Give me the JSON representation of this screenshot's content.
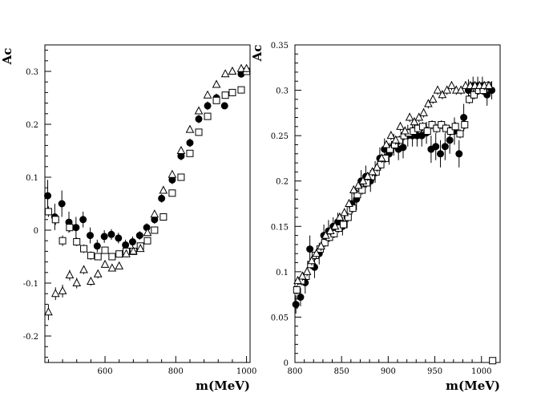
{
  "chart_data": [
    {
      "type": "scatter",
      "ylabel": "Ac",
      "xlabel": "m(MeV)",
      "xlim": [
        430,
        1010
      ],
      "ylim": [
        -0.25,
        0.35
      ],
      "xticks": [
        600,
        800,
        1000
      ],
      "yticks": [
        -0.2,
        -0.1,
        0,
        0.1,
        0.2,
        0.3
      ],
      "ytick_labels": [
        "-0.2",
        "-0.1",
        "0",
        "0.1",
        "0.2",
        "0.3"
      ],
      "grid": false,
      "series": [
        {
          "marker": "filled-circle",
          "x": [
            438,
            458,
            478,
            498,
            518,
            538,
            558,
            578,
            598,
            618,
            638,
            658,
            678,
            698,
            718,
            740,
            760,
            790,
            815,
            840,
            865,
            890,
            915,
            938,
            960,
            985,
            1000
          ],
          "y": [
            0.065,
            0.025,
            0.05,
            0.015,
            0.005,
            0.02,
            -0.01,
            -0.03,
            -0.012,
            -0.008,
            -0.015,
            -0.028,
            -0.022,
            -0.01,
            0.005,
            0.02,
            0.06,
            0.095,
            0.14,
            0.165,
            0.21,
            0.235,
            0.25,
            0.235,
            0.26,
            0.295,
            0.3
          ],
          "err": [
            0.03,
            0.025,
            0.025,
            0.02,
            0.02,
            0.015,
            0.015,
            0.012,
            0.012,
            0.01,
            0.01,
            0.01,
            0.01,
            0.008,
            0.008,
            0.008,
            0.008,
            0.008,
            0.008,
            0.008,
            0.008,
            0.008,
            0.008,
            0.006,
            0.006,
            0.006,
            0.006
          ]
        },
        {
          "marker": "open-square",
          "x": [
            440,
            460,
            480,
            500,
            520,
            540,
            560,
            580,
            600,
            620,
            640,
            660,
            680,
            700,
            720,
            740,
            765,
            790,
            815,
            840,
            865,
            890,
            915,
            940,
            960,
            985,
            1000
          ],
          "y": [
            0.035,
            0.02,
            -0.02,
            0.005,
            -0.022,
            -0.035,
            -0.048,
            -0.05,
            -0.038,
            -0.05,
            -0.045,
            -0.04,
            -0.04,
            -0.03,
            -0.02,
            0.0,
            0.025,
            0.07,
            0.1,
            0.145,
            0.185,
            0.215,
            0.245,
            0.255,
            0.26,
            0.265,
            0.3
          ],
          "err": [
            0.01,
            0.01,
            0.01,
            0.008,
            0.008,
            0.008,
            0.008,
            0.006,
            0.006,
            0.006,
            0.006,
            0.006,
            0.006,
            0.006,
            0.006,
            0.006,
            0.006,
            0.006,
            0.006,
            0.006,
            0.006,
            0.006,
            0.006,
            0.006,
            0.006,
            0.006,
            0.006
          ]
        },
        {
          "marker": "open-triangle",
          "x": [
            440,
            460,
            480,
            500,
            520,
            540,
            560,
            580,
            600,
            620,
            640,
            660,
            680,
            700,
            720,
            740,
            765,
            790,
            815,
            840,
            865,
            890,
            915,
            940,
            960,
            985,
            1000
          ],
          "y": [
            -0.155,
            -0.12,
            -0.115,
            -0.085,
            -0.1,
            -0.075,
            -0.097,
            -0.083,
            -0.065,
            -0.072,
            -0.068,
            -0.045,
            -0.04,
            -0.035,
            -0.005,
            0.03,
            0.075,
            0.105,
            0.15,
            0.19,
            0.225,
            0.255,
            0.275,
            0.295,
            0.3,
            0.305,
            0.305
          ],
          "err": [
            0.015,
            0.012,
            0.012,
            0.01,
            0.01,
            0.008,
            0.008,
            0.008,
            0.006,
            0.006,
            0.006,
            0.006,
            0.006,
            0.006,
            0.006,
            0.006,
            0.006,
            0.006,
            0.006,
            0.006,
            0.006,
            0.006,
            0.006,
            0.006,
            0.006,
            0.006,
            0.006
          ]
        }
      ]
    },
    {
      "type": "scatter",
      "ylabel": "Ac",
      "xlabel": "m(MeV)",
      "xlim": [
        800,
        1020
      ],
      "ylim": [
        0,
        0.35
      ],
      "xticks": [
        800,
        850,
        900,
        950,
        1000
      ],
      "yticks": [
        0,
        0.05,
        0.1,
        0.15,
        0.2,
        0.25,
        0.3,
        0.35
      ],
      "ytick_labels": [
        "0",
        "0.05",
        "0.1",
        "0.15",
        "0.2",
        "0.25",
        "0.3",
        "0.35"
      ],
      "grid": false,
      "series": [
        {
          "marker": "filled-circle",
          "x": [
            801,
            806,
            811,
            816,
            821,
            826,
            831,
            836,
            841,
            846,
            851,
            856,
            861,
            866,
            871,
            876,
            881,
            886,
            891,
            896,
            901,
            906,
            911,
            916,
            921,
            926,
            931,
            936,
            941,
            946,
            951,
            956,
            961,
            966,
            971,
            976,
            981,
            986,
            991,
            996,
            1001,
            1006,
            1011
          ],
          "y": [
            0.064,
            0.072,
            0.088,
            0.125,
            0.105,
            0.12,
            0.14,
            0.145,
            0.15,
            0.155,
            0.15,
            0.16,
            0.175,
            0.18,
            0.2,
            0.205,
            0.2,
            0.21,
            0.225,
            0.235,
            0.23,
            0.24,
            0.235,
            0.237,
            0.25,
            0.25,
            0.25,
            0.25,
            0.253,
            0.235,
            0.238,
            0.23,
            0.238,
            0.245,
            0.255,
            0.23,
            0.27,
            0.3,
            0.305,
            0.305,
            0.305,
            0.295,
            0.3
          ],
          "err": [
            0.01,
            0.01,
            0.012,
            0.015,
            0.012,
            0.012,
            0.012,
            0.012,
            0.01,
            0.01,
            0.01,
            0.012,
            0.012,
            0.012,
            0.012,
            0.012,
            0.012,
            0.012,
            0.012,
            0.012,
            0.012,
            0.012,
            0.012,
            0.012,
            0.012,
            0.012,
            0.012,
            0.012,
            0.012,
            0.015,
            0.015,
            0.015,
            0.015,
            0.015,
            0.015,
            0.015,
            0.015,
            0.012,
            0.01,
            0.01,
            0.01,
            0.012,
            0.01
          ]
        },
        {
          "marker": "open-square",
          "x": [
            802,
            807,
            812,
            817,
            822,
            827,
            832,
            837,
            842,
            847,
            852,
            857,
            862,
            867,
            872,
            877,
            882,
            887,
            892,
            897,
            902,
            907,
            912,
            917,
            922,
            927,
            932,
            937,
            942,
            947,
            952,
            957,
            962,
            967,
            972,
            977,
            982,
            987,
            992,
            997,
            1002,
            1007,
            1012
          ],
          "y": [
            0.08,
            0.09,
            0.095,
            0.108,
            0.118,
            0.125,
            0.132,
            0.138,
            0.142,
            0.148,
            0.152,
            0.16,
            0.17,
            0.185,
            0.19,
            0.198,
            0.205,
            0.21,
            0.218,
            0.225,
            0.235,
            0.24,
            0.245,
            0.25,
            0.253,
            0.255,
            0.258,
            0.26,
            0.255,
            0.262,
            0.258,
            0.262,
            0.258,
            0.255,
            0.26,
            0.252,
            0.262,
            0.29,
            0.295,
            0.3,
            0.3,
            0.305,
            0.002
          ],
          "err": [
            0.005,
            0.005,
            0.005,
            0.005,
            0.005,
            0.005,
            0.005,
            0.005,
            0.005,
            0.005,
            0.005,
            0.005,
            0.005,
            0.005,
            0.005,
            0.005,
            0.005,
            0.005,
            0.005,
            0.005,
            0.005,
            0.005,
            0.005,
            0.005,
            0.005,
            0.005,
            0.005,
            0.005,
            0.005,
            0.005,
            0.005,
            0.005,
            0.005,
            0.005,
            0.005,
            0.005,
            0.005,
            0.005,
            0.005,
            0.005,
            0.005,
            0.005,
            0.0
          ]
        },
        {
          "marker": "open-triangle",
          "x": [
            803,
            808,
            813,
            818,
            823,
            828,
            833,
            838,
            843,
            848,
            853,
            858,
            863,
            868,
            873,
            878,
            883,
            888,
            893,
            898,
            903,
            908,
            913,
            918,
            923,
            928,
            933,
            938,
            943,
            948,
            953,
            958,
            963,
            968,
            973,
            978,
            983,
            988,
            993,
            998,
            1003,
            1008
          ],
          "y": [
            0.09,
            0.095,
            0.1,
            0.112,
            0.12,
            0.128,
            0.14,
            0.145,
            0.15,
            0.16,
            0.165,
            0.175,
            0.19,
            0.195,
            0.2,
            0.205,
            0.21,
            0.215,
            0.225,
            0.24,
            0.25,
            0.245,
            0.26,
            0.255,
            0.27,
            0.265,
            0.27,
            0.275,
            0.285,
            0.29,
            0.3,
            0.295,
            0.3,
            0.305,
            0.3,
            0.3,
            0.305,
            0.305,
            0.305,
            0.305,
            0.305,
            0.305
          ],
          "err": [
            0.005,
            0.005,
            0.005,
            0.005,
            0.005,
            0.005,
            0.005,
            0.005,
            0.005,
            0.005,
            0.005,
            0.005,
            0.005,
            0.005,
            0.005,
            0.005,
            0.005,
            0.005,
            0.005,
            0.005,
            0.005,
            0.005,
            0.005,
            0.005,
            0.005,
            0.005,
            0.005,
            0.005,
            0.005,
            0.005,
            0.005,
            0.005,
            0.005,
            0.005,
            0.005,
            0.005,
            0.005,
            0.005,
            0.005,
            0.005,
            0.005,
            0.005
          ]
        }
      ]
    }
  ]
}
